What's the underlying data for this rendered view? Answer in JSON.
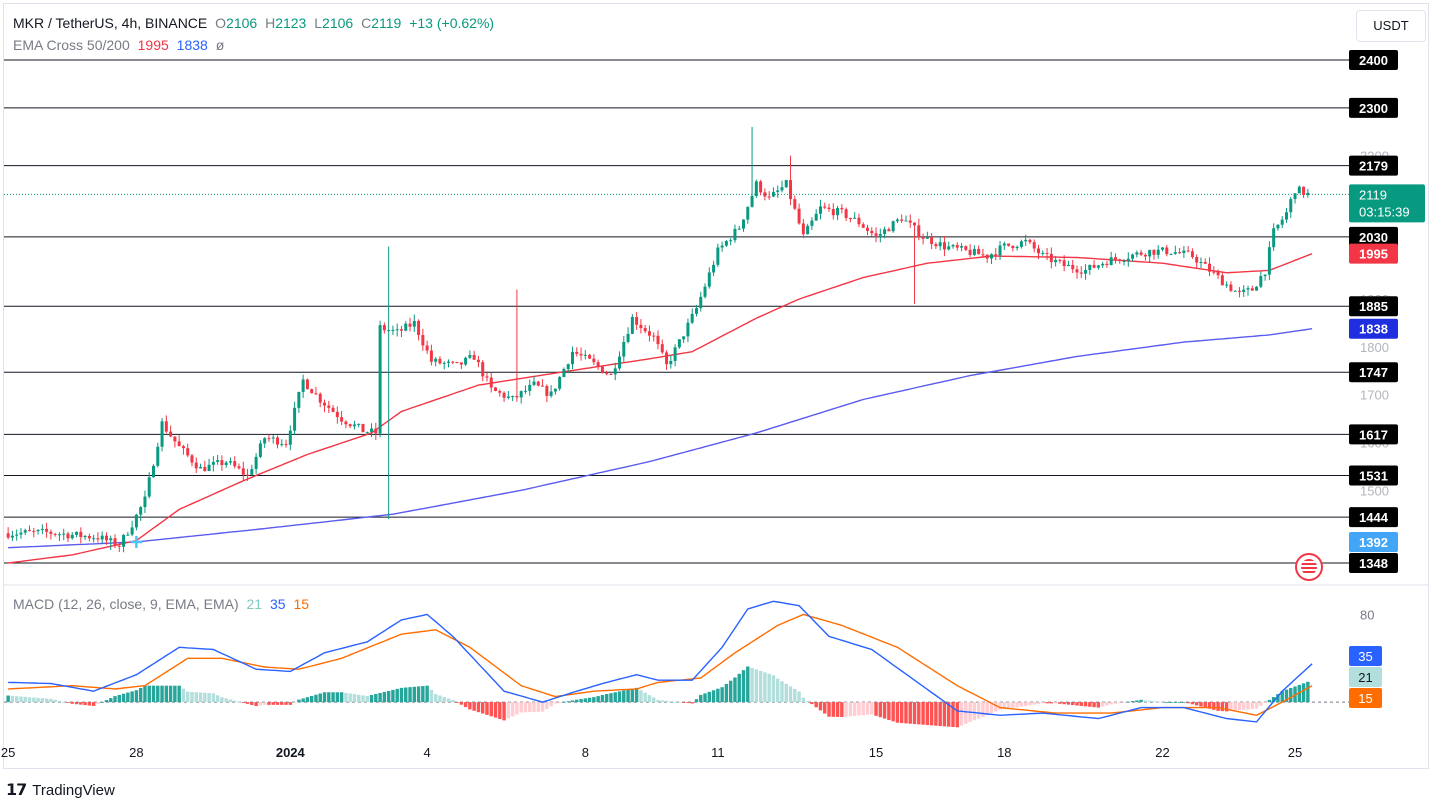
{
  "header": {
    "symbol": "MKR / TetherUS, 4h, BINANCE",
    "o_label": "O",
    "o_value": "2106",
    "h_label": "H",
    "h_value": "2123",
    "l_label": "L",
    "l_value": "2106",
    "c_label": "C",
    "c_value": "2119",
    "change": "+13 (+0.62%)",
    "ema_label": "EMA Cross 50/200",
    "ema50_value": "1995",
    "ema200_value": "1838",
    "ema_extra": "ø"
  },
  "currency_button": "USDT",
  "macd": {
    "label": "MACD (12, 26, close, 9, EMA, EMA)",
    "hist_value": "21",
    "macd_value": "35",
    "signal_value": "15",
    "axis_top_label": "80"
  },
  "brand": "TradingView",
  "colors": {
    "up": "#089981",
    "down": "#f23645",
    "ema50": "#f23645",
    "ema200": "#5b5bf0",
    "macd": "#2962ff",
    "signal": "#ff6d00",
    "hist_up_strong": "#26a69a",
    "hist_up_weak": "#b2dfdb",
    "hist_down_strong": "#ff5252",
    "hist_down_weak": "#ffcdd2"
  },
  "chart_data": {
    "type": "candlestick",
    "ylim": [
      1340,
      2420
    ],
    "y_ticks_faint": [
      "1500",
      "1600",
      "1700",
      "1800",
      "1900",
      "2200"
    ],
    "level_lines": [
      "2400",
      "2300",
      "2179",
      "2030",
      "1885",
      "1747",
      "1617",
      "1531",
      "1444",
      "1348"
    ],
    "price_labels": [
      {
        "text": "2400",
        "value": 2400,
        "kind": "level"
      },
      {
        "text": "2300",
        "value": 2300,
        "kind": "level"
      },
      {
        "text": "2179",
        "value": 2179,
        "kind": "level"
      },
      {
        "text": "2030",
        "value": 2030,
        "kind": "level"
      },
      {
        "text": "1885",
        "value": 1885,
        "kind": "level"
      },
      {
        "text": "1747",
        "value": 1747,
        "kind": "level"
      },
      {
        "text": "1617",
        "value": 1617,
        "kind": "level"
      },
      {
        "text": "1531",
        "value": 1531,
        "kind": "level"
      },
      {
        "text": "1444",
        "value": 1444,
        "kind": "level"
      },
      {
        "text": "1348",
        "value": 1348,
        "kind": "level"
      },
      {
        "text": "1995",
        "value": 1995,
        "kind": "ema50"
      },
      {
        "text": "1838",
        "value": 1838,
        "kind": "ema200"
      },
      {
        "text": "1392",
        "value": 1392,
        "kind": "cross"
      }
    ],
    "last_price": {
      "value": 2119,
      "text": "2119",
      "countdown": "03:15:39"
    },
    "x_labels": [
      "25",
      "28",
      "2024",
      "4",
      "8",
      "11",
      "15",
      "18",
      "22",
      "25"
    ],
    "x_label_candle_index": [
      0,
      30,
      66,
      98,
      135,
      166,
      203,
      233,
      270,
      301
    ],
    "candle_count": 305,
    "price_path_keypoints": [
      [
        0,
        1410
      ],
      [
        10,
        1412
      ],
      [
        18,
        1405
      ],
      [
        22,
        1402
      ],
      [
        27,
        1385
      ],
      [
        30,
        1430
      ],
      [
        33,
        1480
      ],
      [
        37,
        1640
      ],
      [
        41,
        1590
      ],
      [
        46,
        1545
      ],
      [
        52,
        1560
      ],
      [
        57,
        1530
      ],
      [
        61,
        1610
      ],
      [
        66,
        1600
      ],
      [
        70,
        1730
      ],
      [
        74,
        1690
      ],
      [
        79,
        1650
      ],
      [
        84,
        1625
      ],
      [
        87,
        1620
      ],
      [
        88,
        1840
      ],
      [
        92,
        1830
      ],
      [
        96,
        1850
      ],
      [
        100,
        1770
      ],
      [
        106,
        1760
      ],
      [
        110,
        1780
      ],
      [
        114,
        1710
      ],
      [
        119,
        1690
      ],
      [
        124,
        1720
      ],
      [
        128,
        1700
      ],
      [
        133,
        1790
      ],
      [
        137,
        1770
      ],
      [
        142,
        1740
      ],
      [
        147,
        1860
      ],
      [
        152,
        1820
      ],
      [
        155,
        1760
      ],
      [
        158,
        1810
      ],
      [
        162,
        1880
      ],
      [
        167,
        2000
      ],
      [
        172,
        2050
      ],
      [
        176,
        2140
      ],
      [
        179,
        2110
      ],
      [
        183,
        2140
      ],
      [
        187,
        2030
      ],
      [
        191,
        2090
      ],
      [
        196,
        2080
      ],
      [
        200,
        2060
      ],
      [
        204,
        2030
      ],
      [
        210,
        2070
      ],
      [
        215,
        2030
      ],
      [
        220,
        2010
      ],
      [
        225,
        2000
      ],
      [
        230,
        1990
      ],
      [
        234,
        2010
      ],
      [
        239,
        2020
      ],
      [
        243,
        1990
      ],
      [
        248,
        1970
      ],
      [
        253,
        1960
      ],
      [
        258,
        1980
      ],
      [
        263,
        1990
      ],
      [
        268,
        2000
      ],
      [
        273,
        2000
      ],
      [
        278,
        1990
      ],
      [
        282,
        1960
      ],
      [
        286,
        1930
      ],
      [
        289,
        1910
      ],
      [
        292,
        1920
      ],
      [
        295,
        1960
      ],
      [
        297,
        2040
      ],
      [
        300,
        2080
      ],
      [
        302,
        2130
      ],
      [
        305,
        2119
      ]
    ],
    "spikes": [
      {
        "index": 89,
        "high": 2010,
        "low": 1440
      },
      {
        "index": 174,
        "high": 2260
      },
      {
        "index": 183,
        "high": 2200
      },
      {
        "index": 212,
        "low": 1890
      },
      {
        "index": 119,
        "high": 1920
      },
      {
        "index": 24,
        "low": 1375
      }
    ],
    "ema50_keypoints": [
      [
        0,
        1348
      ],
      [
        15,
        1365
      ],
      [
        30,
        1395
      ],
      [
        40,
        1460
      ],
      [
        55,
        1520
      ],
      [
        70,
        1575
      ],
      [
        85,
        1620
      ],
      [
        92,
        1665
      ],
      [
        110,
        1720
      ],
      [
        130,
        1748
      ],
      [
        150,
        1775
      ],
      [
        160,
        1790
      ],
      [
        175,
        1860
      ],
      [
        185,
        1900
      ],
      [
        200,
        1945
      ],
      [
        215,
        1975
      ],
      [
        230,
        1990
      ],
      [
        250,
        1987
      ],
      [
        270,
        1975
      ],
      [
        285,
        1955
      ],
      [
        295,
        1960
      ],
      [
        305,
        1995
      ]
    ],
    "ema200_keypoints": [
      [
        0,
        1380
      ],
      [
        30,
        1392
      ],
      [
        60,
        1420
      ],
      [
        90,
        1450
      ],
      [
        120,
        1500
      ],
      [
        150,
        1560
      ],
      [
        175,
        1620
      ],
      [
        200,
        1690
      ],
      [
        225,
        1740
      ],
      [
        250,
        1780
      ],
      [
        275,
        1810
      ],
      [
        295,
        1825
      ],
      [
        305,
        1838
      ]
    ],
    "macd_series": {
      "ylim": [
        -30,
        95
      ],
      "macd_keypoints": [
        [
          0,
          18
        ],
        [
          10,
          17
        ],
        [
          20,
          10
        ],
        [
          30,
          25
        ],
        [
          40,
          50
        ],
        [
          48,
          48
        ],
        [
          58,
          30
        ],
        [
          66,
          28
        ],
        [
          74,
          45
        ],
        [
          84,
          55
        ],
        [
          92,
          75
        ],
        [
          98,
          80
        ],
        [
          104,
          60
        ],
        [
          116,
          10
        ],
        [
          125,
          0
        ],
        [
          133,
          10
        ],
        [
          140,
          18
        ],
        [
          147,
          25
        ],
        [
          152,
          20
        ],
        [
          160,
          20
        ],
        [
          167,
          50
        ],
        [
          173,
          85
        ],
        [
          179,
          92
        ],
        [
          185,
          88
        ],
        [
          192,
          60
        ],
        [
          202,
          48
        ],
        [
          212,
          20
        ],
        [
          222,
          -8
        ],
        [
          232,
          -12
        ],
        [
          242,
          -10
        ],
        [
          255,
          -15
        ],
        [
          265,
          -5
        ],
        [
          275,
          -5
        ],
        [
          285,
          -15
        ],
        [
          292,
          -18
        ],
        [
          298,
          10
        ],
        [
          305,
          35
        ]
      ],
      "signal_keypoints": [
        [
          0,
          12
        ],
        [
          15,
          15
        ],
        [
          25,
          12
        ],
        [
          32,
          15
        ],
        [
          42,
          40
        ],
        [
          50,
          40
        ],
        [
          60,
          32
        ],
        [
          68,
          30
        ],
        [
          78,
          40
        ],
        [
          92,
          62
        ],
        [
          100,
          66
        ],
        [
          108,
          50
        ],
        [
          120,
          15
        ],
        [
          128,
          5
        ],
        [
          137,
          10
        ],
        [
          147,
          12
        ],
        [
          152,
          18
        ],
        [
          162,
          22
        ],
        [
          170,
          45
        ],
        [
          180,
          70
        ],
        [
          186,
          80
        ],
        [
          195,
          70
        ],
        [
          208,
          50
        ],
        [
          222,
          15
        ],
        [
          232,
          -5
        ],
        [
          245,
          -10
        ],
        [
          258,
          -10
        ],
        [
          270,
          -5
        ],
        [
          283,
          -5
        ],
        [
          292,
          -12
        ],
        [
          298,
          0
        ],
        [
          305,
          15
        ]
      ]
    }
  }
}
